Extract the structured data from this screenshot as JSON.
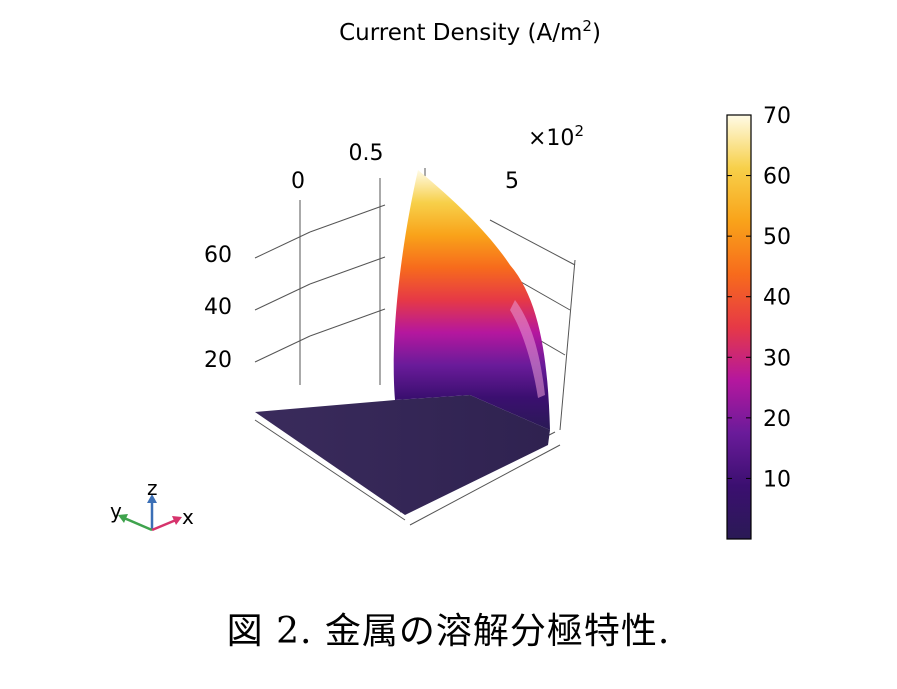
{
  "chart_data": {
    "type": "surface3d",
    "title": "Current Density (A/m²)",
    "title_base": "Current Density (A/m",
    "title_sup": "2",
    "title_end": ")",
    "x_axis": {
      "ticks": [
        "0",
        "5"
      ],
      "multiplier": "×10",
      "multiplier_exp": "2"
    },
    "y_axis": {
      "ticks": [
        "0",
        "0.5"
      ]
    },
    "z_axis": {
      "ticks": [
        "20",
        "40",
        "60"
      ]
    },
    "colorbar": {
      "colormap": "inferno-like",
      "ticks": [
        "70",
        "60",
        "50",
        "40",
        "30",
        "20",
        "10"
      ],
      "min": 0,
      "max": 70,
      "stops": [
        "#2a1a55",
        "#3b0f70",
        "#6a1b9a",
        "#b5179e",
        "#e63946",
        "#f76b1c",
        "#f9a31a",
        "#f7d04a",
        "#fffbe6"
      ]
    },
    "surface": {
      "description_values": "current density rises steeply from near 0 to about 70 toward one edge",
      "max_value": 70,
      "min_value": 0
    },
    "orientation_triad": {
      "labels": [
        "y",
        "z",
        "x"
      ],
      "colors": [
        "#3fa34d",
        "#3b6fb6",
        "#d6336c"
      ]
    }
  },
  "caption": "図 2. 金属の溶解分極特性."
}
